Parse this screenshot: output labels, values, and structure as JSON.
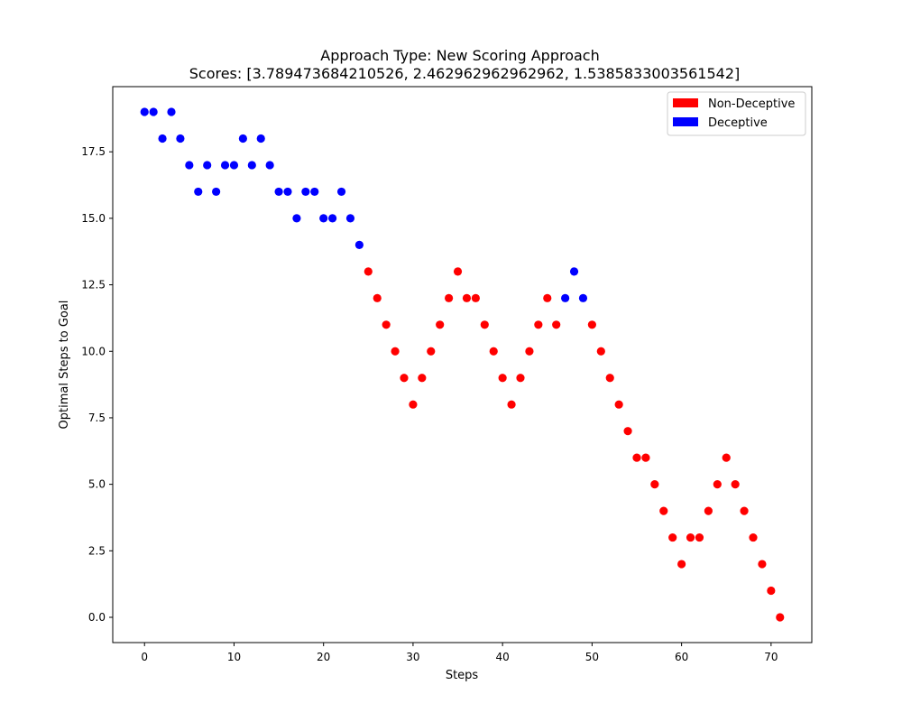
{
  "chart_data": {
    "type": "scatter",
    "title": "Approach Type: New Scoring Approach",
    "subtitle": "Scores: [3.789473684210526, 2.462962962962962, 1.5385833003561542]",
    "xlabel": "Steps",
    "ylabel": "Optimal Steps to Goal",
    "xlim": [
      -3.55,
      74.55
    ],
    "ylim": [
      -0.95,
      19.95
    ],
    "xticks": [
      0,
      10,
      20,
      30,
      40,
      50,
      60,
      70
    ],
    "xtick_labels": [
      "0",
      "10",
      "20",
      "30",
      "40",
      "50",
      "60",
      "70"
    ],
    "yticks": [
      0,
      2.5,
      5,
      7.5,
      10,
      12.5,
      15,
      17.5
    ],
    "ytick_labels": [
      "0.0",
      "2.5",
      "5.0",
      "7.5",
      "10.0",
      "12.5",
      "15.0",
      "17.5"
    ],
    "grid": false,
    "legend_position": "top-right",
    "legend": [
      {
        "label": "Non-Deceptive",
        "color": "#ff0000"
      },
      {
        "label": "Deceptive",
        "color": "#0000ff"
      }
    ],
    "series": [
      {
        "name": "Deceptive",
        "color": "#0000ff",
        "x": [
          0,
          1,
          2,
          3,
          4,
          5,
          6,
          7,
          8,
          9,
          10,
          11,
          12,
          13,
          14,
          15,
          16,
          17,
          18,
          19,
          20,
          21,
          22,
          23,
          24,
          47,
          48,
          49
        ],
        "y": [
          19,
          19,
          18,
          19,
          18,
          17,
          16,
          17,
          16,
          17,
          17,
          18,
          17,
          18,
          17,
          16,
          16,
          15,
          16,
          16,
          15,
          15,
          16,
          15,
          14,
          12,
          13,
          12
        ]
      },
      {
        "name": "Non-Deceptive",
        "color": "#ff0000",
        "x": [
          25,
          26,
          27,
          28,
          29,
          30,
          31,
          32,
          33,
          34,
          35,
          36,
          37,
          38,
          39,
          40,
          41,
          42,
          43,
          44,
          45,
          46,
          50,
          51,
          52,
          53,
          54,
          55,
          56,
          57,
          58,
          59,
          60,
          61,
          62,
          63,
          64,
          65,
          66,
          67,
          68,
          69,
          70,
          71
        ],
        "y": [
          13,
          12,
          11,
          10,
          9,
          8,
          9,
          10,
          11,
          12,
          13,
          12,
          12,
          11,
          10,
          9,
          8,
          9,
          10,
          11,
          12,
          11,
          11,
          10,
          9,
          8,
          7,
          6,
          6,
          5,
          4,
          3,
          2,
          3,
          3,
          4,
          5,
          6,
          5,
          4,
          3,
          2,
          1,
          0
        ]
      }
    ]
  }
}
